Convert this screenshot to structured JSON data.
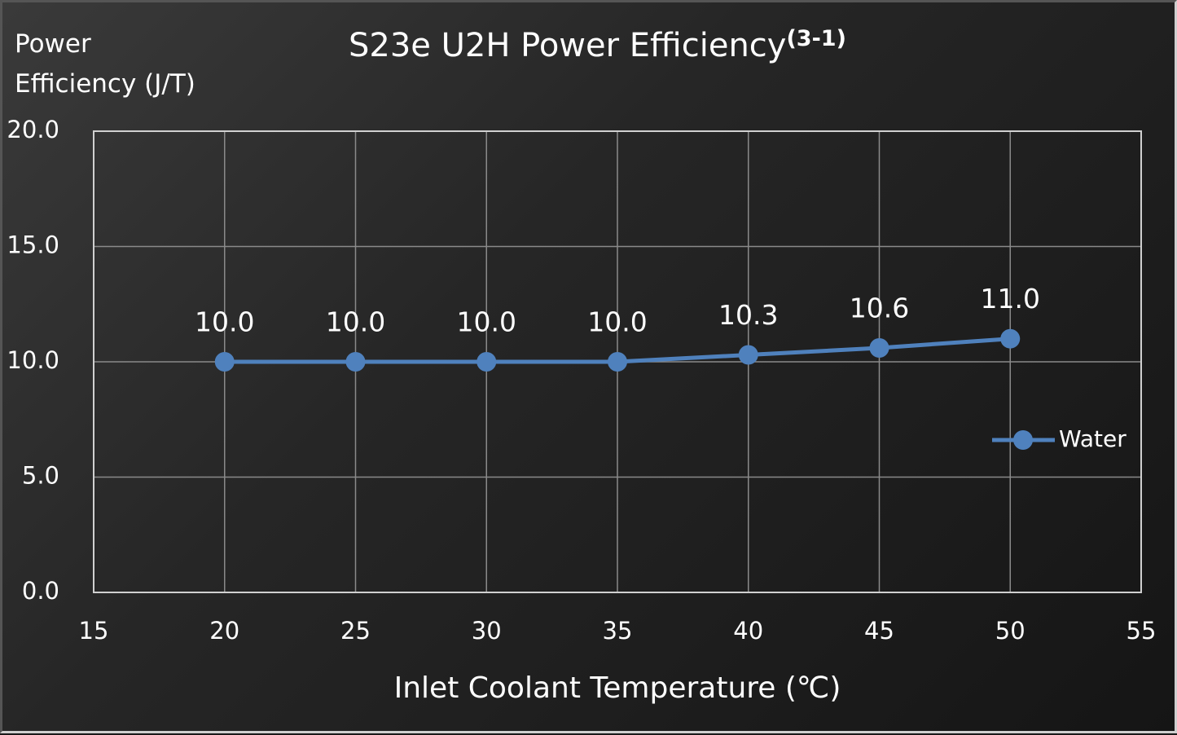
{
  "chart_data": {
    "type": "line",
    "title": "S23e U2H Power Efficiency",
    "title_superscript": "(3-1)",
    "y_label": "Power Efficiency (J/T)",
    "x_label": "Inlet Coolant Temperature (℃)",
    "x": [
      20,
      25,
      30,
      35,
      40,
      45,
      50
    ],
    "series": [
      {
        "name": "Water",
        "color": "#4f81bd",
        "values": [
          10.0,
          10.0,
          10.0,
          10.0,
          10.3,
          10.6,
          11.0
        ],
        "value_labels": [
          "10.0",
          "10.0",
          "10.0",
          "10.0",
          "10.3",
          "10.6",
          "11.0"
        ]
      }
    ],
    "xlim": [
      15,
      55
    ],
    "xticks": [
      15,
      20,
      25,
      30,
      35,
      40,
      45,
      50,
      55
    ],
    "ylim": [
      0,
      20
    ],
    "yticks": [
      {
        "value": 0,
        "label": "0.0"
      },
      {
        "value": 5,
        "label": "5.0"
      },
      {
        "value": 10,
        "label": "10.0"
      },
      {
        "value": 15,
        "label": "15.0"
      },
      {
        "value": 20,
        "label": "20.0"
      }
    ],
    "grid": true,
    "legend": "right"
  }
}
